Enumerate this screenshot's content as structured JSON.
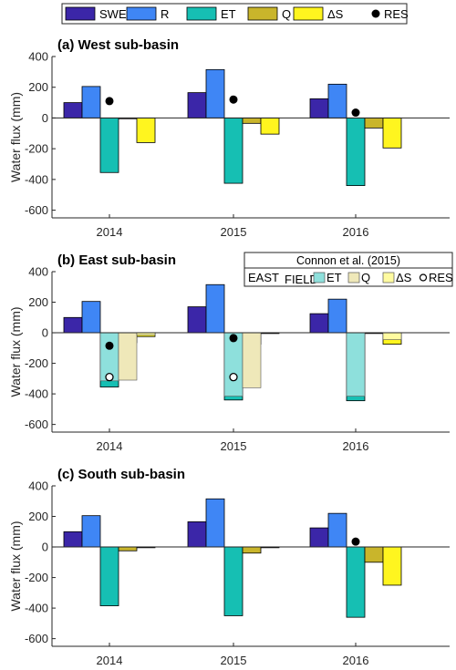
{
  "legend": {
    "items": [
      {
        "label": "SWE",
        "color": "#3b26a8",
        "kind": "bar"
      },
      {
        "label": "R",
        "color": "#3f86f5",
        "kind": "bar"
      },
      {
        "label": "ET",
        "color": "#16bfb3",
        "kind": "bar"
      },
      {
        "label": "Q",
        "color": "#c9b52b",
        "kind": "bar"
      },
      {
        "label": "ΔS",
        "color": "#fff51f",
        "kind": "bar"
      },
      {
        "label": "RES",
        "color": "#000000",
        "kind": "dot"
      }
    ]
  },
  "inset_legend": {
    "title": "Connon et al. (2015)",
    "prefix": "EAST",
    "prefix_sub": "FIELD",
    "items": [
      {
        "label": "ET",
        "color": "#8ee0dc",
        "kind": "bar"
      },
      {
        "label": "Q",
        "color": "#efe8b9",
        "kind": "bar"
      },
      {
        "label": "ΔS",
        "color": "#fffba0",
        "kind": "bar"
      },
      {
        "label": "RES",
        "color": "#000000",
        "kind": "circle"
      }
    ]
  },
  "chart_data": [
    {
      "type": "bar",
      "title": "(a) West sub-basin",
      "ylabel": "Water flux (mm)",
      "ylim": [
        -650,
        400
      ],
      "yticks": [
        400,
        200,
        0,
        -200,
        -400,
        -600
      ],
      "categories": [
        "2014",
        "2015",
        "2016"
      ],
      "series": [
        {
          "name": "SWE",
          "values": [
            100,
            165,
            125
          ]
        },
        {
          "name": "R",
          "values": [
            205,
            315,
            220
          ]
        },
        {
          "name": "ET",
          "values": [
            -355,
            -425,
            -440
          ]
        },
        {
          "name": "Q",
          "values": [
            -5,
            -35,
            -65
          ]
        },
        {
          "name": "ΔS",
          "values": [
            -160,
            -105,
            -195
          ]
        }
      ],
      "res": [
        110,
        120,
        35
      ]
    },
    {
      "type": "bar",
      "title": "(b) East sub-basin",
      "ylabel": "Water flux (mm)",
      "ylim": [
        -650,
        400
      ],
      "yticks": [
        400,
        200,
        0,
        -200,
        -400,
        -600
      ],
      "categories": [
        "2014",
        "2015",
        "2016"
      ],
      "series": [
        {
          "name": "SWE",
          "values": [
            100,
            170,
            125
          ]
        },
        {
          "name": "R",
          "values": [
            205,
            315,
            220
          ]
        },
        {
          "name": "ET",
          "values": [
            -355,
            -440,
            -445
          ]
        },
        {
          "name": "Q",
          "values": [
            -65,
            -75,
            0
          ]
        },
        {
          "name": "ΔS",
          "values": [
            -25,
            -5,
            -75
          ]
        }
      ],
      "res": [
        -85,
        -35,
        null
      ],
      "connon": {
        "ET": [
          -315,
          -415,
          -415
        ],
        "Q": [
          -310,
          -360,
          null
        ],
        "ΔS": [
          -15,
          null,
          -45
        ],
        "RES": [
          -290,
          -290,
          null
        ]
      }
    },
    {
      "type": "bar",
      "title": "(c) South sub-basin",
      "ylabel": "Water flux (mm)",
      "ylim": [
        -650,
        400
      ],
      "yticks": [
        400,
        200,
        0,
        -200,
        -400,
        -600
      ],
      "categories": [
        "2014",
        "2015",
        "2016"
      ],
      "series": [
        {
          "name": "SWE",
          "values": [
            100,
            165,
            125
          ]
        },
        {
          "name": "R",
          "values": [
            205,
            315,
            220
          ]
        },
        {
          "name": "ET",
          "values": [
            -385,
            -450,
            -460
          ]
        },
        {
          "name": "Q",
          "values": [
            -25,
            -40,
            -100
          ]
        },
        {
          "name": "ΔS",
          "values": [
            0,
            0,
            -250
          ]
        }
      ],
      "res": [
        null,
        null,
        35
      ]
    }
  ]
}
